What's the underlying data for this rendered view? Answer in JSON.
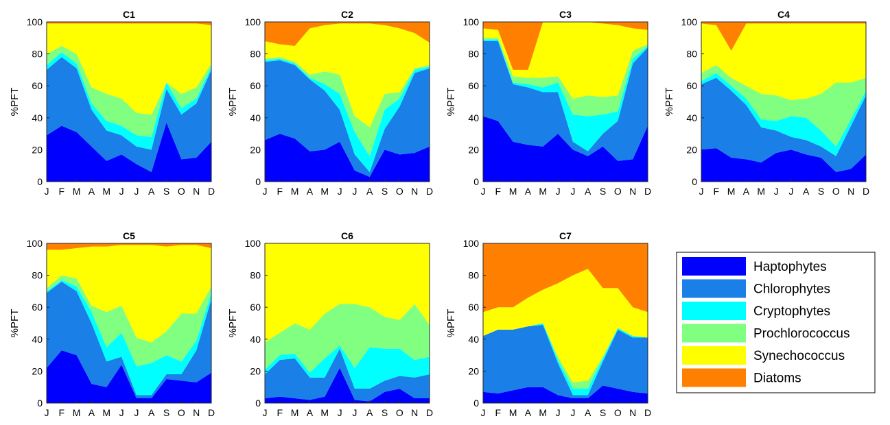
{
  "figure": {
    "ylabel": "%PFT",
    "months": [
      "J",
      "F",
      "M",
      "A",
      "M",
      "J",
      "J",
      "A",
      "S",
      "O",
      "N",
      "D"
    ],
    "yticks": [
      0,
      20,
      40,
      60,
      80,
      100
    ]
  },
  "legend": [
    {
      "name": "Haptophytes",
      "color": "#0000ff"
    },
    {
      "name": "Chlorophytes",
      "color": "#1a7fe6"
    },
    {
      "name": "Cryptophytes",
      "color": "#00ffff"
    },
    {
      "name": "Prochlorococcus",
      "color": "#80ff80"
    },
    {
      "name": "Synechococcus",
      "color": "#ffff00"
    },
    {
      "name": "Diatoms",
      "color": "#ff8000"
    }
  ],
  "chart_data": [
    {
      "type": "area",
      "title": "C1",
      "x": [
        1,
        2,
        3,
        4,
        5,
        6,
        7,
        8,
        9,
        10,
        11,
        12
      ],
      "ylim": [
        0,
        100
      ],
      "ylabel": "%PFT",
      "series": [
        {
          "name": "Haptophytes",
          "values": [
            29,
            35,
            31,
            22,
            13,
            17,
            11,
            6,
            37,
            14,
            15,
            25
          ]
        },
        {
          "name": "Chlorophytes",
          "values": [
            41,
            43,
            40,
            23,
            19,
            12,
            11,
            14,
            21,
            28,
            34,
            45
          ]
        },
        {
          "name": "Cryptophytes",
          "values": [
            3,
            3,
            3,
            4,
            6,
            6,
            7,
            8,
            4,
            4,
            3,
            2
          ]
        },
        {
          "name": "Prochlorococcus",
          "values": [
            7,
            4,
            6,
            10,
            17,
            17,
            14,
            14,
            0,
            9,
            7,
            2
          ]
        },
        {
          "name": "Synechococcus",
          "values": [
            19,
            14,
            19,
            40,
            44,
            47,
            56,
            57,
            37,
            44,
            40,
            24
          ]
        },
        {
          "name": "Diatoms",
          "values": [
            1,
            1,
            1,
            1,
            1,
            1,
            1,
            1,
            1,
            1,
            1,
            2
          ]
        }
      ]
    },
    {
      "type": "area",
      "title": "C2",
      "x": [
        1,
        2,
        3,
        4,
        5,
        6,
        7,
        8,
        9,
        10,
        11,
        12
      ],
      "ylim": [
        0,
        100
      ],
      "ylabel": "%PFT",
      "series": [
        {
          "name": "Haptophytes",
          "values": [
            26,
            30,
            27,
            19,
            20,
            25,
            7,
            3,
            20,
            17,
            18,
            22
          ]
        },
        {
          "name": "Chlorophytes",
          "values": [
            49,
            46,
            46,
            45,
            37,
            20,
            10,
            3,
            13,
            30,
            50,
            49
          ]
        },
        {
          "name": "Cryptophytes",
          "values": [
            1,
            1,
            1,
            1,
            4,
            10,
            14,
            10,
            12,
            5,
            2,
            1
          ]
        },
        {
          "name": "Prochlorococcus",
          "values": [
            1,
            1,
            1,
            2,
            8,
            12,
            10,
            18,
            10,
            4,
            1,
            1
          ]
        },
        {
          "name": "Synechococcus",
          "values": [
            11,
            8,
            10,
            29,
            29,
            32,
            58,
            65,
            43,
            40,
            22,
            14
          ]
        },
        {
          "name": "Diatoms",
          "values": [
            12,
            14,
            15,
            4,
            2,
            1,
            1,
            1,
            2,
            4,
            7,
            13
          ]
        }
      ]
    },
    {
      "type": "area",
      "title": "C3",
      "x": [
        1,
        2,
        3,
        4,
        5,
        6,
        7,
        8,
        9,
        10,
        11,
        12
      ],
      "ylim": [
        0,
        100
      ],
      "ylabel": "%PFT",
      "series": [
        {
          "name": "Haptophytes",
          "values": [
            41,
            38,
            25,
            23,
            22,
            30,
            20,
            16,
            22,
            13,
            14,
            35
          ]
        },
        {
          "name": "Chlorophytes",
          "values": [
            47,
            50,
            36,
            36,
            34,
            26,
            5,
            3,
            8,
            25,
            60,
            49
          ]
        },
        {
          "name": "Cryptophytes",
          "values": [
            1,
            1,
            1,
            2,
            3,
            6,
            17,
            22,
            12,
            6,
            3,
            1
          ]
        },
        {
          "name": "Prochlorococcus",
          "values": [
            1,
            1,
            4,
            4,
            6,
            4,
            10,
            13,
            11,
            10,
            5,
            1
          ]
        },
        {
          "name": "Synechococcus",
          "values": [
            6,
            5,
            4,
            5,
            35,
            34,
            48,
            46,
            46,
            44,
            14,
            9
          ]
        },
        {
          "name": "Diatoms",
          "values": [
            4,
            5,
            30,
            30,
            0,
            0,
            0,
            0,
            1,
            2,
            4,
            5
          ]
        }
      ]
    },
    {
      "type": "area",
      "title": "C4",
      "x": [
        1,
        2,
        3,
        4,
        5,
        6,
        7,
        8,
        9,
        10,
        11,
        12
      ],
      "ylim": [
        0,
        100
      ],
      "ylabel": "%PFT",
      "series": [
        {
          "name": "Haptophytes",
          "values": [
            20,
            21,
            15,
            14,
            12,
            18,
            20,
            17,
            15,
            6,
            8,
            17
          ]
        },
        {
          "name": "Chlorophytes",
          "values": [
            41,
            44,
            42,
            34,
            22,
            14,
            8,
            9,
            7,
            10,
            27,
            37
          ]
        },
        {
          "name": "Cryptophytes",
          "values": [
            2,
            3,
            3,
            4,
            5,
            6,
            13,
            14,
            10,
            6,
            4,
            3
          ]
        },
        {
          "name": "Prochlorococcus",
          "values": [
            5,
            5,
            5,
            8,
            16,
            16,
            10,
            12,
            23,
            40,
            23,
            8
          ]
        },
        {
          "name": "Synechococcus",
          "values": [
            31,
            25,
            17,
            39,
            44,
            45,
            48,
            47,
            44,
            37,
            37,
            34
          ]
        },
        {
          "name": "Diatoms",
          "values": [
            1,
            2,
            18,
            1,
            1,
            1,
            1,
            1,
            1,
            1,
            1,
            1
          ]
        }
      ]
    },
    {
      "type": "area",
      "title": "C5",
      "x": [
        1,
        2,
        3,
        4,
        5,
        6,
        7,
        8,
        9,
        10,
        11,
        12
      ],
      "ylim": [
        0,
        100
      ],
      "ylabel": "%PFT",
      "series": [
        {
          "name": "Haptophytes",
          "values": [
            22,
            33,
            30,
            12,
            10,
            24,
            3,
            3,
            15,
            14,
            13,
            19
          ]
        },
        {
          "name": "Chlorophytes",
          "values": [
            47,
            43,
            40,
            38,
            16,
            5,
            2,
            2,
            3,
            4,
            20,
            46
          ]
        },
        {
          "name": "Cryptophytes",
          "values": [
            1,
            1,
            3,
            7,
            9,
            15,
            18,
            20,
            12,
            8,
            6,
            4
          ]
        },
        {
          "name": "Prochlorococcus",
          "values": [
            2,
            3,
            5,
            4,
            22,
            17,
            18,
            13,
            15,
            30,
            17,
            4
          ]
        },
        {
          "name": "Synechococcus",
          "values": [
            24,
            16,
            19,
            37,
            41,
            38,
            58,
            61,
            53,
            43,
            43,
            24
          ]
        },
        {
          "name": "Diatoms",
          "values": [
            4,
            4,
            3,
            2,
            2,
            1,
            1,
            1,
            2,
            1,
            1,
            3
          ]
        }
      ]
    },
    {
      "type": "area",
      "title": "C6",
      "x": [
        1,
        2,
        3,
        4,
        5,
        6,
        7,
        8,
        9,
        10,
        11,
        12
      ],
      "ylim": [
        0,
        100
      ],
      "ylabel": "%PFT",
      "series": [
        {
          "name": "Haptophytes",
          "values": [
            3,
            4,
            3,
            2,
            4,
            22,
            2,
            1,
            7,
            9,
            3,
            3
          ]
        },
        {
          "name": "Chlorophytes",
          "values": [
            15,
            23,
            25,
            14,
            12,
            12,
            7,
            8,
            7,
            8,
            13,
            15
          ]
        },
        {
          "name": "Cryptophytes",
          "values": [
            3,
            3,
            3,
            3,
            12,
            2,
            13,
            26,
            20,
            17,
            11,
            11
          ]
        },
        {
          "name": "Prochlorococcus",
          "values": [
            17,
            14,
            19,
            27,
            28,
            26,
            40,
            25,
            20,
            18,
            35,
            20
          ]
        },
        {
          "name": "Synechococcus",
          "values": [
            62,
            56,
            50,
            54,
            44,
            38,
            38,
            40,
            46,
            48,
            38,
            51
          ]
        },
        {
          "name": "Diatoms",
          "values": [
            0,
            0,
            0,
            0,
            0,
            0,
            0,
            0,
            0,
            0,
            0,
            0
          ]
        }
      ]
    },
    {
      "type": "area",
      "title": "C7",
      "x": [
        1,
        2,
        3,
        4,
        5,
        6,
        7,
        8,
        9,
        10,
        11,
        12
      ],
      "ylim": [
        0,
        100
      ],
      "ylabel": "%PFT",
      "series": [
        {
          "name": "Haptophytes",
          "values": [
            7,
            6,
            8,
            10,
            10,
            5,
            3,
            3,
            11,
            9,
            7,
            6
          ]
        },
        {
          "name": "Chlorophytes",
          "values": [
            35,
            40,
            38,
            38,
            39,
            20,
            2,
            2,
            15,
            37,
            34,
            35
          ]
        },
        {
          "name": "Cryptophytes",
          "values": [
            0,
            0,
            0,
            0,
            1,
            2,
            4,
            4,
            2,
            1,
            1,
            0
          ]
        },
        {
          "name": "Prochlorococcus",
          "values": [
            0,
            0,
            0,
            0,
            0,
            2,
            4,
            5,
            1,
            0,
            0,
            0
          ]
        },
        {
          "name": "Synechococcus",
          "values": [
            15,
            14,
            14,
            18,
            21,
            46,
            67,
            70,
            43,
            25,
            18,
            16
          ]
        },
        {
          "name": "Diatoms",
          "values": [
            43,
            40,
            40,
            34,
            29,
            25,
            20,
            16,
            28,
            28,
            40,
            43
          ]
        }
      ]
    }
  ]
}
